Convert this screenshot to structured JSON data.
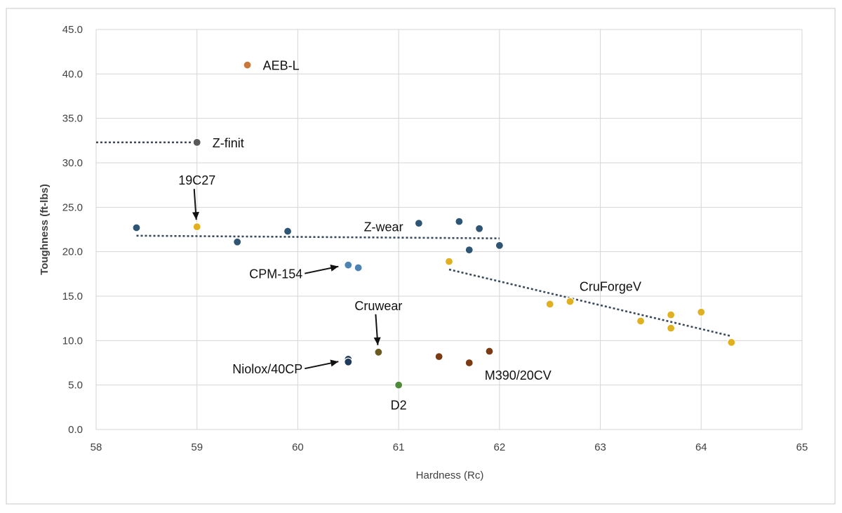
{
  "chart_data": {
    "type": "scatter",
    "title": "",
    "xlabel": "Hardness (Rc)",
    "ylabel": "Toughness (ft-lbs)",
    "xlim": [
      58,
      65
    ],
    "ylim": [
      0,
      45
    ],
    "x_ticks": [
      "58",
      "59",
      "60",
      "61",
      "62",
      "63",
      "64",
      "65"
    ],
    "y_ticks": [
      "0.0",
      "5.0",
      "10.0",
      "15.0",
      "20.0",
      "25.0",
      "30.0",
      "35.0",
      "40.0",
      "45.0"
    ],
    "grid": true,
    "legend": "none",
    "series": [
      {
        "name": "AEB-L",
        "color": "#c8783a",
        "points": [
          [
            59.5,
            41.0
          ]
        ]
      },
      {
        "name": "Z-finit",
        "color": "#595959",
        "points": [
          [
            59.0,
            32.3
          ]
        ]
      },
      {
        "name": "19C27",
        "color": "#e0b020",
        "points": [
          [
            59.0,
            22.8
          ]
        ]
      },
      {
        "name": "Z-wear",
        "color": "#2e5573",
        "points": [
          [
            58.4,
            22.7
          ],
          [
            59.4,
            21.1
          ],
          [
            59.9,
            22.3
          ],
          [
            61.2,
            23.2
          ],
          [
            61.6,
            23.4
          ],
          [
            61.8,
            22.6
          ],
          [
            61.7,
            20.2
          ],
          [
            62.0,
            20.7
          ]
        ]
      },
      {
        "name": "CPM-154",
        "color": "#4d82b3",
        "points": [
          [
            60.5,
            18.5
          ],
          [
            60.6,
            18.2
          ]
        ]
      },
      {
        "name": "CruForgeV",
        "color": "#e0b020",
        "points": [
          [
            61.5,
            18.9
          ],
          [
            62.5,
            14.1
          ],
          [
            62.7,
            14.4
          ],
          [
            63.4,
            12.2
          ],
          [
            63.7,
            12.9
          ],
          [
            63.7,
            11.4
          ],
          [
            64.0,
            13.2
          ],
          [
            64.3,
            9.8
          ]
        ]
      },
      {
        "name": "Cruwear",
        "color": "#6b5a1e",
        "points": [
          [
            60.8,
            8.7
          ]
        ]
      },
      {
        "name": "Niolox/40CP",
        "color": "#1f3a5a",
        "points": [
          [
            60.5,
            7.9
          ],
          [
            60.5,
            7.6
          ]
        ]
      },
      {
        "name": "M390/20CV",
        "color": "#7a3a12",
        "points": [
          [
            61.4,
            8.2
          ],
          [
            61.7,
            7.5
          ],
          [
            61.9,
            8.8
          ]
        ]
      },
      {
        "name": "D2",
        "color": "#4f8a3a",
        "points": [
          [
            61.0,
            5.0
          ]
        ]
      }
    ],
    "trendlines": [
      {
        "name": "Z-finit",
        "from": [
          58.0,
          32.3
        ],
        "to": [
          59.0,
          32.3
        ]
      },
      {
        "name": "Z-wear",
        "from": [
          58.4,
          21.8
        ],
        "to": [
          62.0,
          21.5
        ]
      },
      {
        "name": "CruForgeV",
        "from": [
          61.5,
          18.0
        ],
        "to": [
          64.3,
          10.5
        ]
      }
    ],
    "annotations": [
      {
        "text": "AEB-L",
        "at": [
          59.5,
          41.0
        ],
        "dir": "right"
      },
      {
        "text": "Z-finit",
        "at": [
          59.0,
          32.3
        ],
        "dir": "right"
      },
      {
        "text": "19C27",
        "at": [
          59.0,
          22.8
        ],
        "dir": "above-arrow"
      },
      {
        "text": "Z-wear",
        "at": [
          60.85,
          22.3
        ],
        "dir": "center"
      },
      {
        "text": "CPM-154",
        "at": [
          60.5,
          18.5
        ],
        "dir": "left-arrow"
      },
      {
        "text": "CruForgeV",
        "at": [
          63.1,
          15.6
        ],
        "dir": "center"
      },
      {
        "text": "Cruwear",
        "at": [
          60.8,
          8.7
        ],
        "dir": "above-arrow"
      },
      {
        "text": "Niolox/40CP",
        "at": [
          60.5,
          7.8
        ],
        "dir": "left-arrow"
      },
      {
        "text": "M390/20CV",
        "at": [
          61.7,
          7.5
        ],
        "dir": "right-below"
      },
      {
        "text": "D2",
        "at": [
          61.0,
          5.0
        ],
        "dir": "below"
      }
    ]
  }
}
